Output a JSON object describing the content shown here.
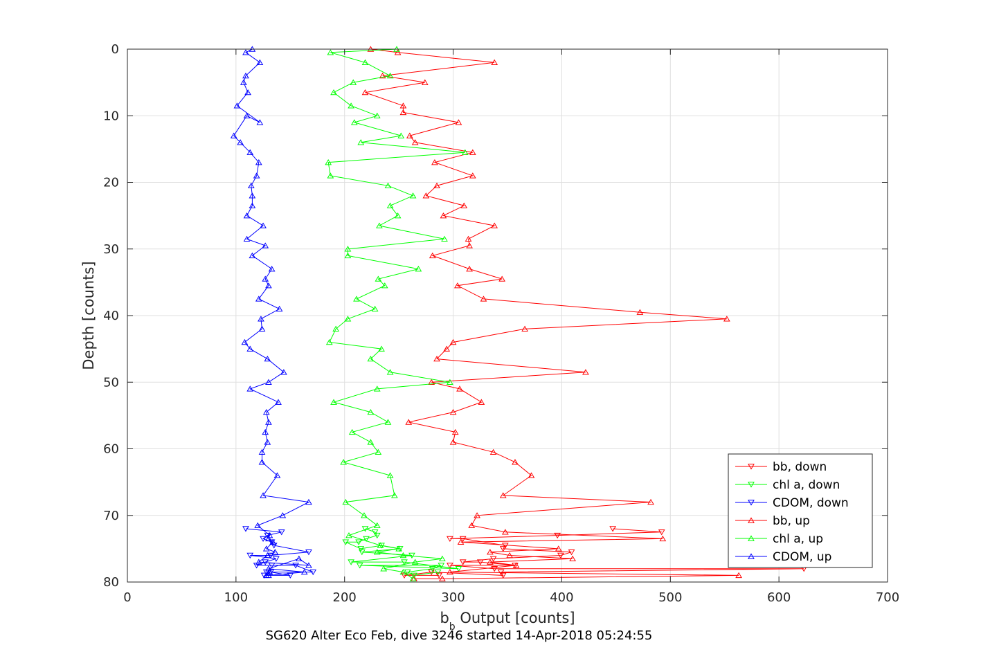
{
  "chart_data": {
    "type": "line",
    "xlabel_main": "b",
    "xlabel_sub": "b",
    "xlabel_rest": " Output [counts]",
    "ylabel": "Depth [counts]",
    "caption": "SG620 Alter Eco Feb, dive 3246 started 14-Apr-2018 05:24:55",
    "xlim": [
      0,
      700
    ],
    "ylim": [
      0,
      80
    ],
    "y_reversed": true,
    "grid": true,
    "legend_position": "bottom-right",
    "xticks": [
      "0",
      "100",
      "200",
      "300",
      "400",
      "500",
      "600",
      "700"
    ],
    "yticks": [
      "0",
      "10",
      "20",
      "30",
      "40",
      "50",
      "60",
      "70",
      "80"
    ],
    "series": [
      {
        "name": "bb, down",
        "color": "#ff0000",
        "marker": "triangle-down",
        "x": [
          447,
          492,
          396,
          297,
          309,
          348,
          346,
          409,
          399,
          337,
          309,
          325,
          357,
          297,
          338,
          623,
          344,
          346,
          280,
          255,
          287
        ],
        "y": [
          72.0,
          72.5,
          73.0,
          73.5,
          73.5,
          74.5,
          75.0,
          75.5,
          76.0,
          76.5,
          77.0,
          77.0,
          77.5,
          77.5,
          78.0,
          78.0,
          78.5,
          79.0,
          78.5,
          79.0,
          79.0
        ]
      },
      {
        "name": "chl a, down",
        "color": "#00ff00",
        "marker": "triangle-down",
        "x": [
          219,
          228,
          230,
          220,
          213,
          201,
          215,
          234,
          251,
          216,
          262,
          206,
          255,
          305,
          214,
          289,
          281,
          258,
          264,
          286
        ],
        "y": [
          72.0,
          72.5,
          73.0,
          73.5,
          74.0,
          74.0,
          75.0,
          74.5,
          75.0,
          75.5,
          76.0,
          77.0,
          77.0,
          78.0,
          77.5,
          77.5,
          78.0,
          78.5,
          79.0,
          78.5
        ]
      },
      {
        "name": "CDOM, down",
        "color": "#0000ff",
        "marker": "triangle-down",
        "x": [
          109,
          142,
          129,
          125,
          133,
          135,
          167,
          132,
          113,
          137,
          127,
          119,
          133,
          155,
          171,
          128,
          132,
          150,
          126
        ],
        "y": [
          72.0,
          72.5,
          73.0,
          73.5,
          74.0,
          74.5,
          75.5,
          76.0,
          76.0,
          76.5,
          77.0,
          77.5,
          77.5,
          77.5,
          78.5,
          78.5,
          78.5,
          79.0,
          79.0
        ]
      },
      {
        "name": "bb, up",
        "color": "#ff0000",
        "marker": "triangle-up",
        "x": [
          224,
          249,
          338,
          235,
          274,
          219,
          254,
          254,
          305,
          260,
          265,
          318,
          283,
          318,
          285,
          275,
          310,
          291,
          338,
          314,
          315,
          281,
          315,
          345,
          304,
          328,
          472,
          552,
          366,
          300,
          294,
          285,
          422,
          280,
          306,
          326,
          300,
          259,
          302,
          300,
          337,
          357,
          372,
          346,
          482,
          322,
          317,
          348,
          493,
          307,
          397,
          334,
          352,
          410,
          334,
          358,
          297,
          563,
          290,
          264
        ],
        "y": [
          0,
          0.5,
          2,
          4,
          5.0,
          6.5,
          8.5,
          9.5,
          11.0,
          13.0,
          14.0,
          15.5,
          17.0,
          19.0,
          20.5,
          22.0,
          23.5,
          25.0,
          26.5,
          28.5,
          29.5,
          31.0,
          33.0,
          34.5,
          35.5,
          37.5,
          39.5,
          40.5,
          42.0,
          44.0,
          45.0,
          46.5,
          48.5,
          50.0,
          51.0,
          53.0,
          54.5,
          56.0,
          57.5,
          59.0,
          60.5,
          62.0,
          64.0,
          67.0,
          68.0,
          70.0,
          71.5,
          72.5,
          73.5,
          74.0,
          75.0,
          75.5,
          76.0,
          76.5,
          77.0,
          77.5,
          78.5,
          79.0,
          79.5,
          79.5
        ]
      },
      {
        "name": "chl a, up",
        "color": "#00ff00",
        "marker": "triangle-up",
        "x": [
          248,
          187,
          219,
          242,
          208,
          190,
          206,
          230,
          209,
          252,
          215,
          311,
          185,
          187,
          240,
          263,
          242,
          249,
          232,
          292,
          203,
          203,
          268,
          231,
          237,
          211,
          228,
          203,
          192,
          186,
          234,
          224,
          242,
          297,
          230,
          190,
          224,
          240,
          207,
          224,
          231,
          199,
          242,
          246,
          201,
          218,
          230,
          204,
          233,
          250,
          230,
          254,
          290,
          265,
          236,
          254,
          263
        ],
        "y": [
          0,
          0.5,
          2,
          4,
          5.0,
          6.5,
          8.5,
          10.0,
          11.0,
          13.0,
          14.0,
          15.5,
          17.0,
          19.0,
          20.5,
          22.0,
          23.5,
          25.0,
          26.5,
          28.5,
          30.0,
          31.0,
          33.0,
          34.5,
          35.5,
          37.5,
          39.0,
          40.5,
          42.0,
          44.0,
          45.0,
          46.5,
          48.5,
          50.0,
          51.0,
          53.0,
          54.5,
          56.0,
          57.5,
          59.0,
          60.5,
          62.0,
          64.0,
          67.0,
          68.0,
          70.0,
          71.5,
          73.0,
          74.5,
          75.0,
          75.5,
          76.0,
          76.5,
          77.0,
          78.0,
          78.5,
          79.5
        ]
      },
      {
        "name": "CDOM, up",
        "color": "#0000ff",
        "marker": "triangle-up",
        "x": [
          115,
          109,
          122,
          109,
          107,
          111,
          101,
          122,
          110,
          98,
          104,
          113,
          121,
          119,
          114,
          115,
          115,
          110,
          125,
          110,
          127,
          115,
          133,
          127,
          130,
          121,
          140,
          123,
          124,
          108,
          113,
          129,
          144,
          130,
          113,
          139,
          128,
          130,
          127,
          129,
          124,
          124,
          138,
          125,
          167,
          143,
          120,
          131,
          130,
          134,
          128,
          136,
          129,
          121,
          167,
          158,
          130,
          163,
          130,
          131,
          128
        ],
        "y": [
          0,
          0.5,
          2,
          4,
          5.0,
          6.5,
          8.5,
          11.0,
          10.0,
          13.0,
          14.0,
          15.5,
          17.0,
          19.0,
          20.5,
          22.0,
          23.5,
          25.0,
          26.5,
          28.5,
          29.5,
          31.0,
          33.0,
          34.5,
          35.5,
          37.5,
          39.0,
          40.5,
          42.0,
          44.0,
          45.0,
          46.5,
          48.5,
          50.0,
          51.0,
          53.0,
          54.5,
          56.0,
          57.5,
          59.0,
          60.5,
          62.0,
          64.0,
          67.0,
          68.0,
          70.0,
          71.5,
          73.0,
          73.5,
          74.0,
          75.0,
          75.5,
          76.0,
          77.0,
          77.5,
          76.5,
          78.0,
          78.5,
          79.0,
          78.5,
          79.0
        ]
      }
    ]
  }
}
